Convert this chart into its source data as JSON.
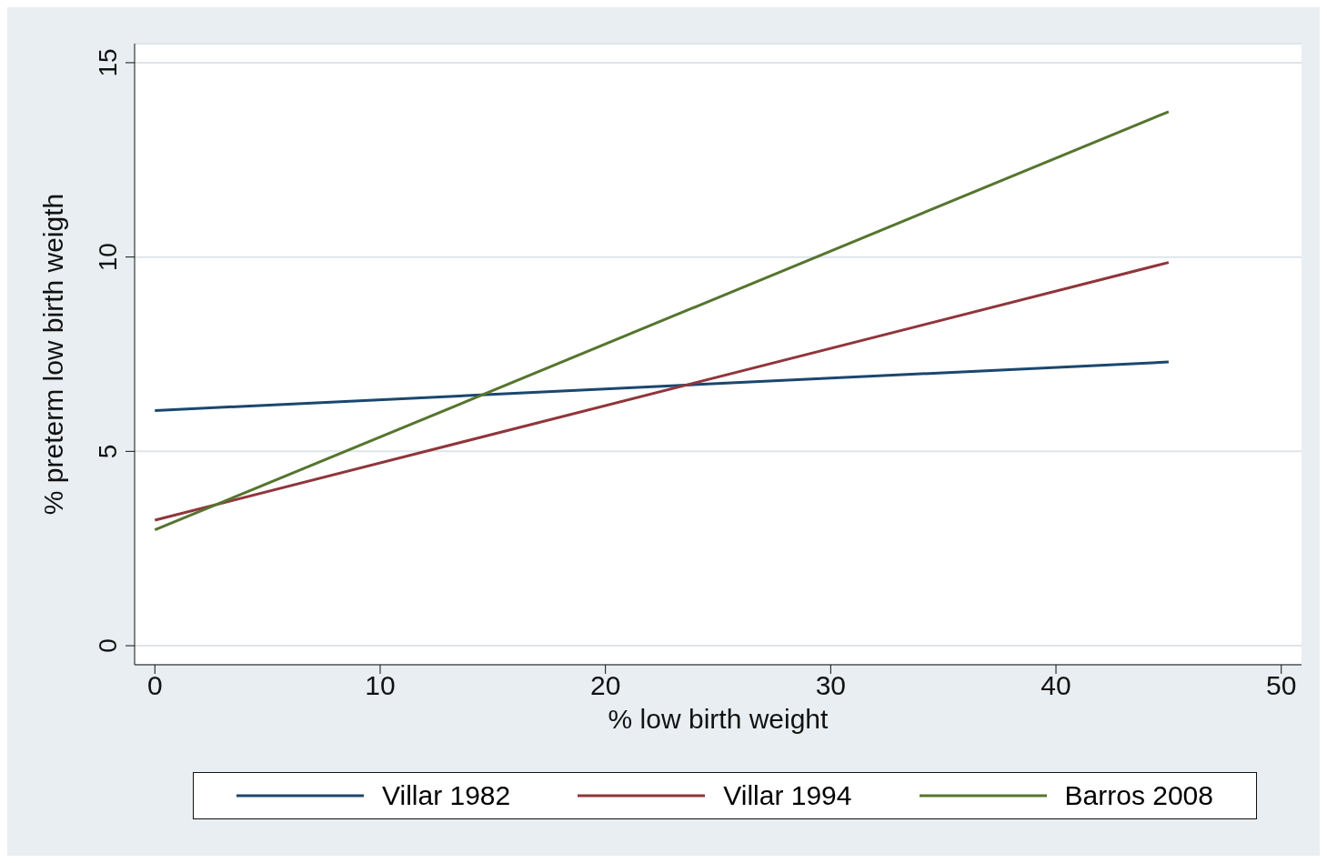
{
  "chart_data": {
    "type": "line",
    "xlabel": "% low birth weight",
    "ylabel": "% preterm low birth weigth",
    "xlim": [
      -0.9,
      50.9
    ],
    "xticks": [
      0,
      10,
      20,
      30,
      40,
      50
    ],
    "ylim": [
      -0.49,
      15.49
    ],
    "yticks": [
      0,
      5,
      10,
      15
    ],
    "grid": "y",
    "legend": "bottom",
    "marker": "none",
    "line_style": "solid",
    "x": [
      0,
      45
    ],
    "series": [
      {
        "name": "Villar 1982",
        "color": "#1a476f",
        "values": [
          6.05,
          7.3
        ]
      },
      {
        "name": "Villar 1994",
        "color": "#90353b",
        "values": [
          3.23,
          9.86
        ]
      },
      {
        "name": "Barros 2008",
        "color": "#55752f",
        "values": [
          2.98,
          13.74
        ]
      }
    ]
  }
}
